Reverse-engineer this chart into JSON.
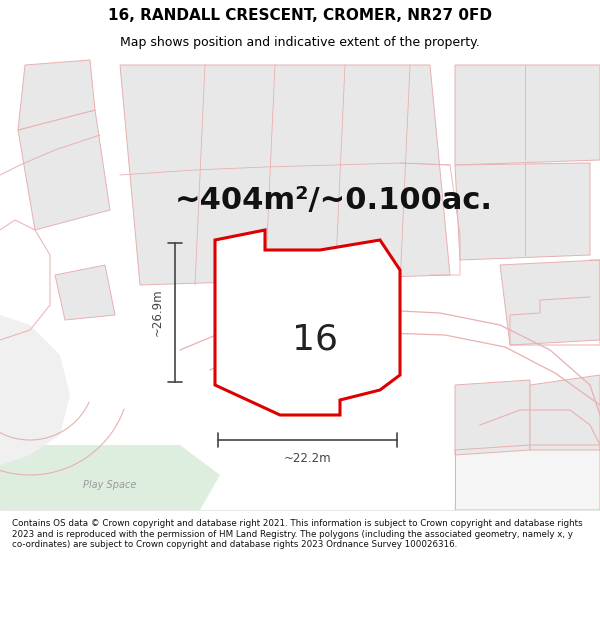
{
  "title_line1": "16, RANDALL CRESCENT, CROMER, NR27 0FD",
  "title_line2": "Map shows position and indicative extent of the property.",
  "area_text": "~404m²/~0.100ac.",
  "plot_number": "16",
  "dim_width": "~22.2m",
  "dim_height": "~26.9m",
  "play_space_label": "Play Space",
  "footer_text": "Contains OS data © Crown copyright and database right 2021. This information is subject to Crown copyright and database rights 2023 and is reproduced with the permission of HM Land Registry. The polygons (including the associated geometry, namely x, y co-ordinates) are subject to Crown copyright and database rights 2023 Ordnance Survey 100026316.",
  "map_bg": "#ffffff",
  "plot_fill": "#ffffff",
  "plot_edge": "#dd0000",
  "neighbor_fill": "#e8e8e8",
  "neighbor_edge": "#e8b0b0",
  "outline_color": "#e8b0b0",
  "green_area": "#deeede",
  "footer_bg": "#ffffff",
  "title_fontsize": 11,
  "subtitle_fontsize": 9,
  "area_fontsize": 22,
  "plot_label_fontsize": 26,
  "dim_line_color": "#444444"
}
